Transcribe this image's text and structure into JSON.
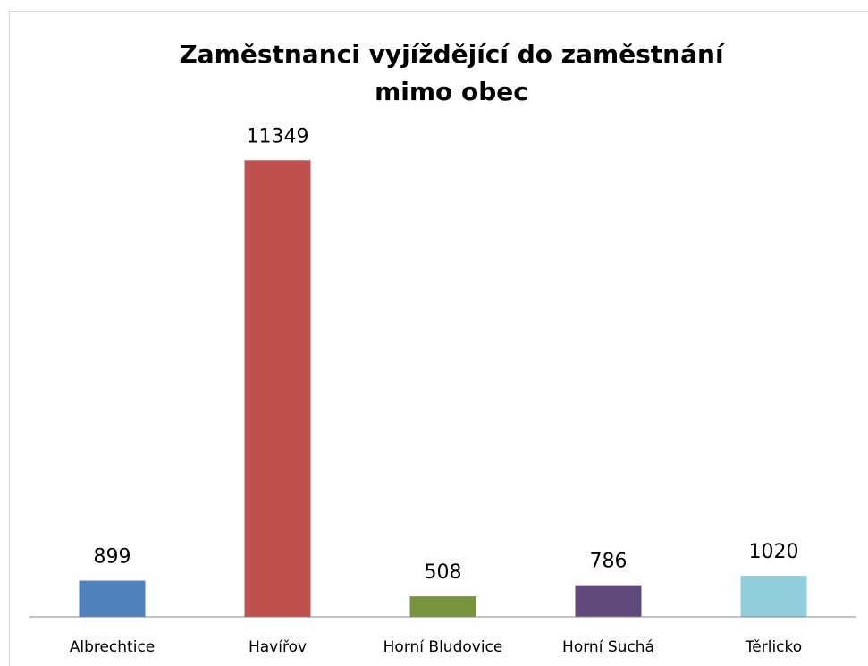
{
  "chart_data": {
    "type": "bar",
    "title": "Zaměstnanci vyjíždějící do zaměstnání mimo obec",
    "categories": [
      "Albrechtice",
      "Havířov",
      "Horní Bludovice",
      "Horní Suchá",
      "Těrlicko"
    ],
    "values": [
      899,
      11349,
      508,
      786,
      1020
    ],
    "colors": [
      "#4f81bd",
      "#c0504d",
      "#77933c",
      "#604a7b",
      "#92cddc"
    ],
    "ylim": [
      0,
      12000
    ]
  }
}
